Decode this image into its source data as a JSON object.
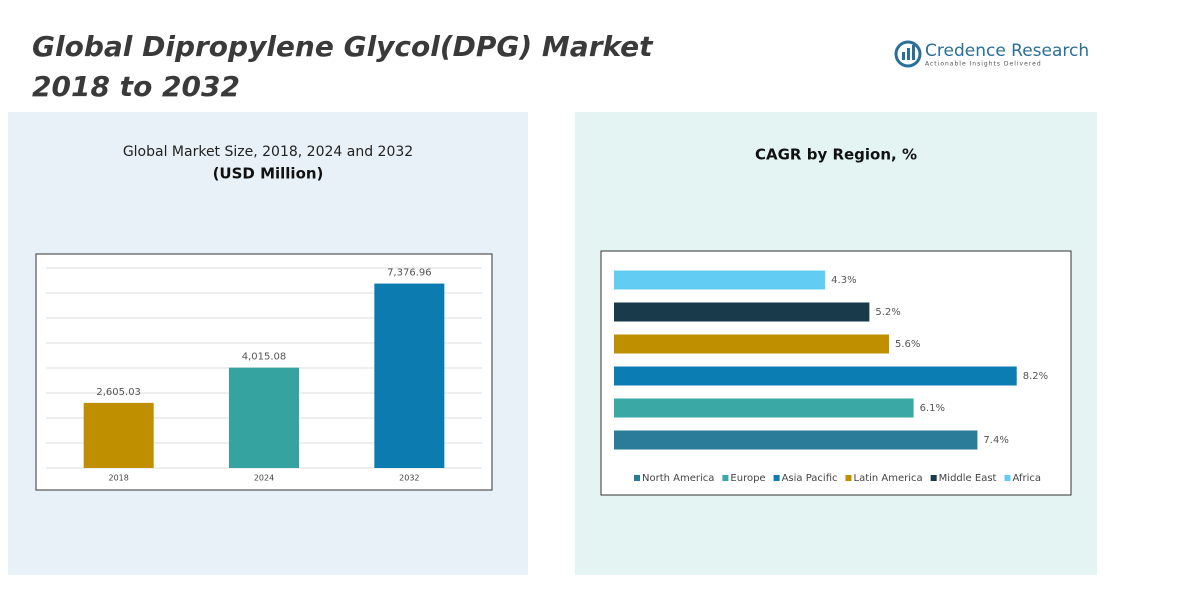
{
  "header": {
    "title_line1": "Global Dipropylene Glycol(DPG) Market",
    "title_line2": "2018 to 2032",
    "logo_name": "Credence Research",
    "logo_tagline": "Actionable Insights Delivered"
  },
  "chart_data": [
    {
      "type": "bar",
      "title": "Global Market Size, 2018, 2024 and 2032",
      "subtitle": "(USD Million)",
      "categories": [
        "2018",
        "2024",
        "2032"
      ],
      "values": [
        2605.03,
        4015.08,
        7376.96
      ],
      "value_labels": [
        "2,605.03",
        "4,015.08",
        "7,376.96"
      ],
      "colors": [
        "#c08f00",
        "#35a4a0",
        "#0b7bb0"
      ],
      "ylim": [
        0,
        8000
      ],
      "yticks": [
        0,
        1000,
        2000,
        3000,
        4000,
        5000,
        6000,
        7000,
        8000
      ],
      "grid": true
    },
    {
      "type": "bar",
      "orientation": "horizontal",
      "title": "CAGR by Region, %",
      "categories": [
        "North America",
        "Europe",
        "Asia Pacific",
        "Latin America",
        "Middle East",
        "Africa"
      ],
      "values": [
        7.4,
        6.1,
        8.2,
        5.6,
        5.2,
        4.3
      ],
      "value_labels": [
        "7.4%",
        "6.1%",
        "8.2%",
        "5.6%",
        "5.2%",
        "4.3%"
      ],
      "colors": [
        "#2b7c99",
        "#3aa8a4",
        "#0b7db3",
        "#c08f00",
        "#193a4a",
        "#62ccf2"
      ],
      "xlim": [
        0,
        9
      ],
      "legend": "bottom"
    }
  ]
}
